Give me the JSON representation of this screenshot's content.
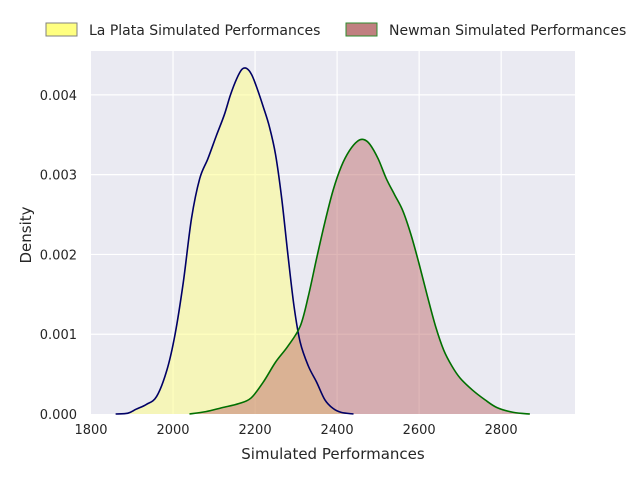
{
  "chart_data": {
    "type": "area",
    "xlabel": "Simulated Performances",
    "ylabel": "Density",
    "xlim": [
      1800,
      2980
    ],
    "ylim": [
      0,
      0.00455
    ],
    "x_ticks": [
      1800,
      2000,
      2200,
      2400,
      2600,
      2800
    ],
    "x_tick_labels": [
      "1800",
      "2000",
      "2200",
      "2400",
      "2600",
      "2800"
    ],
    "y_ticks": [
      0,
      0.001,
      0.002,
      0.003,
      0.004
    ],
    "y_tick_labels": [
      "0.000",
      "0.001",
      "0.002",
      "0.003",
      "0.004"
    ],
    "grid": true,
    "legend_position": "top, outside the plot, horizontal",
    "series": [
      {
        "name": "La Plata Simulated Performances",
        "fill_color": "#ffff80",
        "line_color": "#000066",
        "points": [
          [
            1860,
            0.0
          ],
          [
            1890,
            1e-05
          ],
          [
            1910,
            6e-05
          ],
          [
            1935,
            0.00012
          ],
          [
            1960,
            0.00022
          ],
          [
            1985,
            0.00055
          ],
          [
            2005,
            0.001
          ],
          [
            2025,
            0.00165
          ],
          [
            2045,
            0.00245
          ],
          [
            2065,
            0.00295
          ],
          [
            2085,
            0.0032
          ],
          [
            2105,
            0.00348
          ],
          [
            2125,
            0.00375
          ],
          [
            2140,
            0.004
          ],
          [
            2155,
            0.0042
          ],
          [
            2168,
            0.00432
          ],
          [
            2180,
            0.00433
          ],
          [
            2192,
            0.00425
          ],
          [
            2205,
            0.00408
          ],
          [
            2220,
            0.00385
          ],
          [
            2235,
            0.0036
          ],
          [
            2250,
            0.00325
          ],
          [
            2265,
            0.0027
          ],
          [
            2280,
            0.002
          ],
          [
            2295,
            0.00135
          ],
          [
            2310,
            0.0009
          ],
          [
            2330,
            0.0006
          ],
          [
            2350,
            0.0004
          ],
          [
            2370,
            0.00018
          ],
          [
            2390,
            7e-05
          ],
          [
            2410,
            2e-05
          ],
          [
            2440,
            0.0
          ]
        ]
      },
      {
        "name": "Newman Simulated Performances",
        "fill_color": "#c07070",
        "line_color": "#007000",
        "points": [
          [
            2040,
            0.0
          ],
          [
            2080,
            3e-05
          ],
          [
            2120,
            8e-05
          ],
          [
            2160,
            0.00013
          ],
          [
            2190,
            0.0002
          ],
          [
            2220,
            0.0004
          ],
          [
            2250,
            0.00065
          ],
          [
            2280,
            0.00085
          ],
          [
            2310,
            0.0011
          ],
          [
            2330,
            0.00148
          ],
          [
            2350,
            0.00195
          ],
          [
            2370,
            0.0024
          ],
          [
            2390,
            0.0028
          ],
          [
            2410,
            0.0031
          ],
          [
            2430,
            0.0033
          ],
          [
            2450,
            0.00342
          ],
          [
            2465,
            0.00344
          ],
          [
            2480,
            0.00338
          ],
          [
            2500,
            0.0032
          ],
          [
            2520,
            0.00295
          ],
          [
            2540,
            0.00275
          ],
          [
            2560,
            0.00255
          ],
          [
            2580,
            0.00225
          ],
          [
            2600,
            0.00188
          ],
          [
            2620,
            0.00148
          ],
          [
            2640,
            0.0011
          ],
          [
            2660,
            0.0008
          ],
          [
            2680,
            0.0006
          ],
          [
            2700,
            0.00045
          ],
          [
            2730,
            0.0003
          ],
          [
            2760,
            0.00018
          ],
          [
            2790,
            8e-05
          ],
          [
            2830,
            2e-05
          ],
          [
            2870,
            0.0
          ]
        ]
      }
    ]
  }
}
